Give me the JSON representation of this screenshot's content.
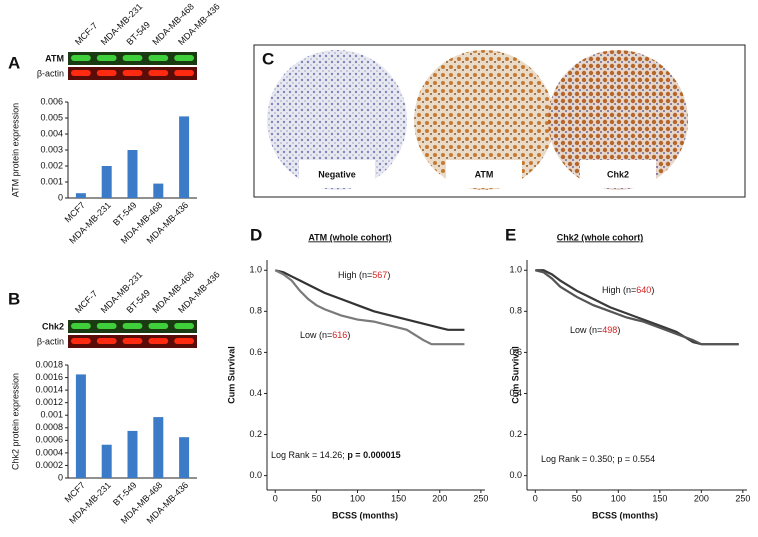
{
  "panel_labels": [
    "A",
    "B",
    "C",
    "D",
    "E"
  ],
  "blots": [
    {
      "lanes": [
        "MCF-7",
        "MDA-MB-231",
        "BT-549",
        "MDA-MB-468",
        "MDA-MB-436"
      ],
      "rows": [
        "ATM",
        "β-actin"
      ]
    },
    {
      "lanes": [
        "MCF-7",
        "MDA-MB-231",
        "BT-549",
        "MDA-MB-468",
        "MDA-MB-436"
      ],
      "rows": [
        "Chk2",
        "β-actin"
      ]
    }
  ],
  "ihc": {
    "labels": [
      "Negative",
      "ATM",
      "Chk2"
    ]
  },
  "chart_data": [
    {
      "type": "bar",
      "ylabel": "ATM protein expression",
      "categories": [
        "MCF7",
        "MDA-MB-231",
        "BT-549",
        "MDA-MB-468",
        "MDA-MB-436"
      ],
      "values": [
        0.0003,
        0.002,
        0.003,
        0.0009,
        0.0051
      ],
      "color": "#3b7bc8",
      "ylim": [
        0,
        0.006
      ],
      "yticks": [
        0,
        0.001,
        0.002,
        0.003,
        0.004,
        0.005,
        0.006
      ]
    },
    {
      "type": "bar",
      "ylabel": "Chk2 protein expression",
      "categories": [
        "MCF7",
        "MDA-MB-231",
        "BT-549",
        "MDA-MB-468",
        "MDA-MB-436"
      ],
      "values": [
        0.00165,
        0.00053,
        0.00075,
        0.00097,
        0.00065
      ],
      "color": "#3b7bc8",
      "ylim": [
        0,
        0.0018
      ],
      "yticks": [
        0,
        0.0002,
        0.0004,
        0.0006,
        0.0008,
        0.001,
        0.0012,
        0.0014,
        0.0016,
        0.0018
      ]
    },
    {
      "type": "line",
      "title": "ATM (whole cohort)",
      "xlabel": "BCSS (months)",
      "ylabel": "Cum Survival",
      "xlim": [
        -10,
        255
      ],
      "ylim": [
        -0.07,
        1.05
      ],
      "xticks": [
        0,
        50,
        100,
        150,
        200,
        250
      ],
      "yticks": [
        {
          "value": 0,
          "label": "0.0"
        },
        {
          "value": 0.2,
          "label": "0.2"
        },
        {
          "value": 0.4,
          "label": "0.4"
        },
        {
          "value": 0.6,
          "label": "0.6"
        },
        {
          "value": 0.8,
          "label": "0.8"
        },
        {
          "value": 1,
          "label": "1.0"
        }
      ],
      "series": [
        {
          "label_parts": [
            "High (n=",
            "567",
            ")"
          ],
          "color": "#333333",
          "x": [
            0,
            10,
            20,
            30,
            40,
            50,
            60,
            80,
            100,
            120,
            140,
            160,
            180,
            200,
            210,
            230
          ],
          "values": [
            1,
            0.99,
            0.97,
            0.95,
            0.93,
            0.91,
            0.89,
            0.86,
            0.83,
            0.8,
            0.78,
            0.76,
            0.74,
            0.72,
            0.71,
            0.71
          ]
        },
        {
          "label_parts": [
            "Low (n=",
            "616",
            ")"
          ],
          "color": "#7a7a7a",
          "x": [
            0,
            10,
            20,
            30,
            40,
            50,
            60,
            80,
            100,
            120,
            140,
            160,
            180,
            190,
            230
          ],
          "values": [
            1,
            0.98,
            0.95,
            0.9,
            0.86,
            0.83,
            0.81,
            0.78,
            0.76,
            0.75,
            0.73,
            0.71,
            0.66,
            0.64,
            0.64
          ]
        }
      ],
      "annotation_parts": [
        "Log Rank = 14.26; ",
        "p = 0.000015"
      ]
    },
    {
      "type": "line",
      "title": "Chk2 (whole cohort)",
      "xlabel": "BCSS (months)",
      "ylabel": "Cum Survival",
      "xlim": [
        -10,
        255
      ],
      "ylim": [
        -0.07,
        1.05
      ],
      "xticks": [
        0,
        50,
        100,
        150,
        200,
        250
      ],
      "yticks": [
        {
          "value": 0,
          "label": "0.0"
        },
        {
          "value": 0.2,
          "label": "0.2"
        },
        {
          "value": 0.4,
          "label": "0.4"
        },
        {
          "value": 0.6,
          "label": "0.6"
        },
        {
          "value": 0.8,
          "label": "0.8"
        },
        {
          "value": 1,
          "label": "1.0"
        }
      ],
      "series": [
        {
          "label_parts": [
            "High (n=",
            "640",
            ")"
          ],
          "color": "#3a3a3a",
          "x": [
            0,
            10,
            20,
            30,
            50,
            70,
            90,
            110,
            130,
            150,
            170,
            190,
            200,
            245
          ],
          "values": [
            1,
            1,
            0.98,
            0.95,
            0.9,
            0.86,
            0.82,
            0.79,
            0.76,
            0.73,
            0.7,
            0.65,
            0.64,
            0.64
          ]
        },
        {
          "label_parts": [
            "Low (n=",
            "498",
            ")"
          ],
          "color": "#555555",
          "x": [
            0,
            10,
            20,
            30,
            50,
            70,
            90,
            110,
            130,
            150,
            170,
            190,
            200,
            245
          ],
          "values": [
            1,
            0.99,
            0.96,
            0.92,
            0.87,
            0.83,
            0.8,
            0.77,
            0.75,
            0.72,
            0.69,
            0.66,
            0.64,
            0.64
          ]
        }
      ],
      "annotation_parts": [
        "Log Rank = 0.350; ",
        "p = 0.554"
      ]
    }
  ]
}
